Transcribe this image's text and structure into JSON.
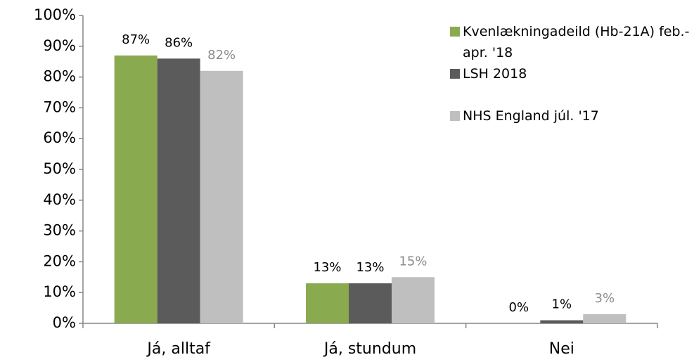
{
  "chart_data": {
    "type": "bar",
    "categories": [
      "Já, alltaf",
      "Já, stundum",
      "Nei"
    ],
    "series": [
      {
        "name": "Kvenlækningadeild (Hb-21A) feb.-apr. '18",
        "color": "#8aaa4f",
        "values": [
          87,
          13,
          0
        ],
        "value_labels": [
          "87%",
          "13%",
          "0%"
        ]
      },
      {
        "name": "LSH 2018",
        "color": "#5b5b5b",
        "values": [
          86,
          13,
          1
        ],
        "value_labels": [
          "86%",
          "13%",
          "1%"
        ]
      },
      {
        "name": "NHS England júl. '17",
        "color": "#bfbfbf",
        "values": [
          82,
          15,
          3
        ],
        "value_labels": [
          "82%",
          "15%",
          "3%"
        ]
      }
    ],
    "ylim": [
      0,
      100
    ],
    "yticks": [
      {
        "value": 0,
        "label": "0%"
      },
      {
        "value": 10,
        "label": "10%"
      },
      {
        "value": 20,
        "label": "20%"
      },
      {
        "value": 30,
        "label": "30%"
      },
      {
        "value": 40,
        "label": "40%"
      },
      {
        "value": 50,
        "label": "50%"
      },
      {
        "value": 60,
        "label": "60%"
      },
      {
        "value": 70,
        "label": "70%"
      },
      {
        "value": 80,
        "label": "80%"
      },
      {
        "value": 90,
        "label": "90%"
      },
      {
        "value": 100,
        "label": "100%"
      }
    ],
    "grid": false,
    "legend": "top-right"
  }
}
